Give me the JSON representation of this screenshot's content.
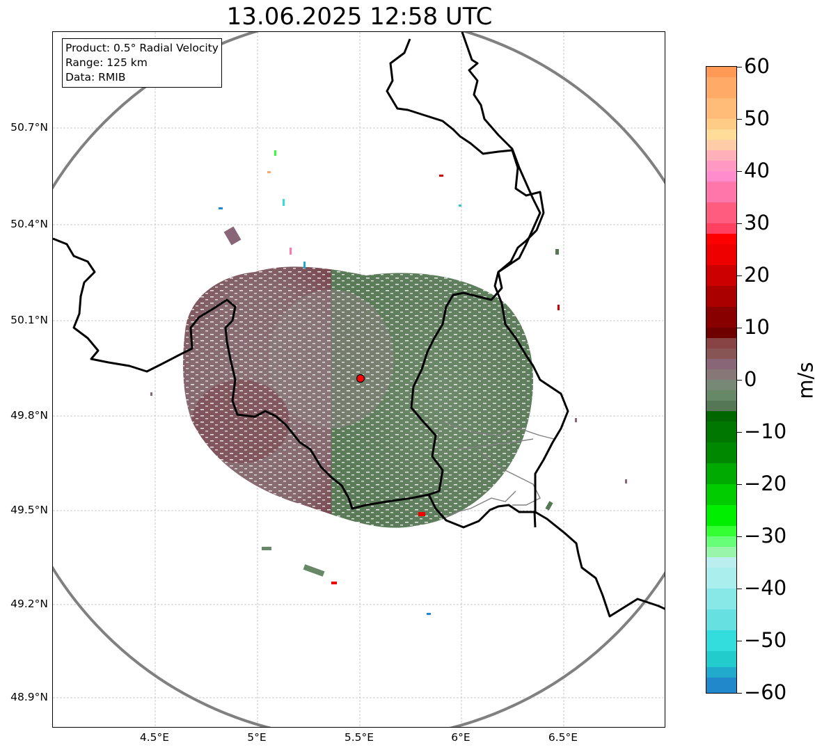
{
  "title": "13.06.2025 12:58 UTC",
  "info": {
    "product": "Product: 0.5° Radial Velocity",
    "range": "Range: 125 km",
    "source": "Data: RMIB"
  },
  "map": {
    "lat_labels": [
      "50.7°N",
      "50.4°N",
      "50.1°N",
      "49.8°N",
      "49.5°N",
      "49.2°N",
      "48.9°N"
    ],
    "lon_labels": [
      "4.5°E",
      "5°E",
      "5.5°E",
      "6°E",
      "6.5°E"
    ],
    "radar_site": {
      "lon": 5.505,
      "lat": 49.914
    },
    "range_km": 125,
    "lon_range": [
      4.0,
      7.0
    ],
    "lat_range": [
      48.8,
      51.0
    ],
    "colors": {
      "border": "#000000",
      "admin": "#808080",
      "range_ring": "#808080",
      "grid": "#bbbbbb",
      "site": "#ff0000"
    }
  },
  "colorbar": {
    "unit": "m/s",
    "min": -60,
    "max": 60,
    "tick_labels": [
      "60",
      "50",
      "40",
      "30",
      "20",
      "10",
      "0",
      "−10",
      "−20",
      "−30",
      "−40",
      "−50",
      "−60"
    ],
    "tick_values": [
      60,
      50,
      40,
      30,
      20,
      10,
      0,
      -10,
      -20,
      -30,
      -40,
      -50,
      -60
    ],
    "bands": [
      {
        "from": 58,
        "to": 60,
        "color": "#ff9955"
      },
      {
        "from": 54,
        "to": 58,
        "color": "#ffaa66"
      },
      {
        "from": 50,
        "to": 54,
        "color": "#ffbb77"
      },
      {
        "from": 48,
        "to": 50,
        "color": "#ffcc88"
      },
      {
        "from": 46,
        "to": 48,
        "color": "#ffdd99"
      },
      {
        "from": 44,
        "to": 46,
        "color": "#ffcca8"
      },
      {
        "from": 42,
        "to": 44,
        "color": "#ffb0b8"
      },
      {
        "from": 40,
        "to": 42,
        "color": "#ff99c4"
      },
      {
        "from": 38,
        "to": 40,
        "color": "#ff8ccc"
      },
      {
        "from": 34,
        "to": 38,
        "color": "#ff77aa"
      },
      {
        "from": 30,
        "to": 34,
        "color": "#ff5c80"
      },
      {
        "from": 28,
        "to": 30,
        "color": "#ff4060"
      },
      {
        "from": 26,
        "to": 28,
        "color": "#ff0000"
      },
      {
        "from": 22,
        "to": 26,
        "color": "#ee0000"
      },
      {
        "from": 18,
        "to": 22,
        "color": "#cc0000"
      },
      {
        "from": 14,
        "to": 18,
        "color": "#aa0000"
      },
      {
        "from": 10,
        "to": 14,
        "color": "#880000"
      },
      {
        "from": 8,
        "to": 10,
        "color": "#6e0000"
      },
      {
        "from": 6,
        "to": 8,
        "color": "#884444"
      },
      {
        "from": 4,
        "to": 6,
        "color": "#885555"
      },
      {
        "from": 2,
        "to": 4,
        "color": "#886677"
      },
      {
        "from": 0,
        "to": 2,
        "color": "#887777"
      },
      {
        "from": -2,
        "to": 0,
        "color": "#778877"
      },
      {
        "from": -4,
        "to": -2,
        "color": "#668866"
      },
      {
        "from": -6,
        "to": -4,
        "color": "#557755"
      },
      {
        "from": -8,
        "to": -6,
        "color": "#006600"
      },
      {
        "from": -12,
        "to": -8,
        "color": "#007700"
      },
      {
        "from": -16,
        "to": -12,
        "color": "#008800"
      },
      {
        "from": -20,
        "to": -16,
        "color": "#00aa00"
      },
      {
        "from": -24,
        "to": -20,
        "color": "#00cc00"
      },
      {
        "from": -28,
        "to": -24,
        "color": "#00ee00"
      },
      {
        "from": -30,
        "to": -28,
        "color": "#33ff33"
      },
      {
        "from": -32,
        "to": -30,
        "color": "#66ff77"
      },
      {
        "from": -34,
        "to": -32,
        "color": "#99f5aa"
      },
      {
        "from": -36,
        "to": -34,
        "color": "#bbeeee"
      },
      {
        "from": -40,
        "to": -36,
        "color": "#aaeeee"
      },
      {
        "from": -44,
        "to": -40,
        "color": "#88e8e8"
      },
      {
        "from": -48,
        "to": -44,
        "color": "#66e0e0"
      },
      {
        "from": -52,
        "to": -48,
        "color": "#33dddd"
      },
      {
        "from": -55,
        "to": -52,
        "color": "#22cccc"
      },
      {
        "from": -57,
        "to": -55,
        "color": "#22aacc"
      },
      {
        "from": -60,
        "to": -57,
        "color": "#2288cc"
      }
    ]
  }
}
